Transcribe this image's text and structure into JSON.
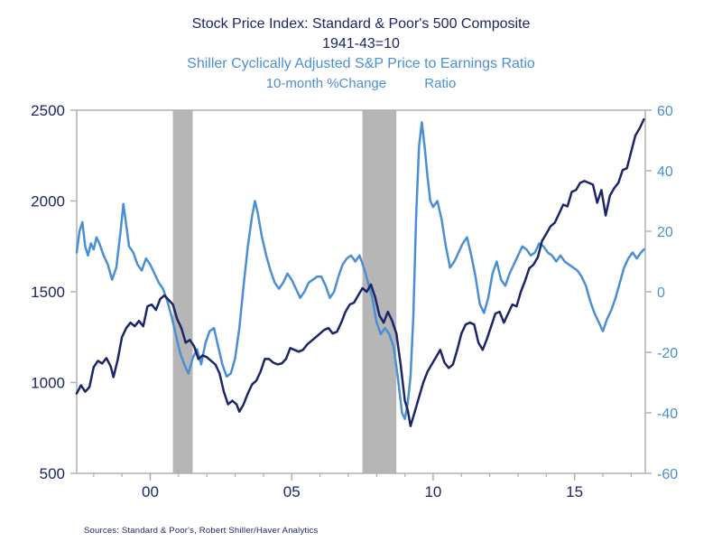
{
  "colors": {
    "navy": "#1b2568",
    "light_blue": "#4a8fd4",
    "recession": "#b6b6b6",
    "axis": "#b0b0b0"
  },
  "footer": {
    "source": "Sources:  Standard & Poor's, Robert Shiller/Haver Analytics"
  },
  "chart_data": {
    "type": "line",
    "title_line1": "Stock Price Index: Standard & Poor's 500 Composite",
    "title_line2": "1941-43=10",
    "subtitle_line1": "Shiller Cyclically Adjusted S&P Price to Earnings Ratio",
    "subtitle_line2_left": "10-month %Change",
    "subtitle_line2_right": "Ratio",
    "grid": false,
    "x_axis": {
      "range": [
        1997.4,
        2017.5
      ],
      "minor_tick_interval": 1,
      "major_tick_positions": [
        2000,
        2005,
        2010,
        2015
      ],
      "major_tick_labels": [
        "00",
        "05",
        "10",
        "15"
      ]
    },
    "left_axis": {
      "range": [
        500,
        2500
      ],
      "ticks": [
        500,
        1000,
        1500,
        2000,
        2500
      ]
    },
    "right_axis": {
      "range": [
        -60,
        60
      ],
      "ticks": [
        -60,
        -40,
        -20,
        0,
        20,
        40,
        60
      ]
    },
    "recession_bands": [
      [
        2000.8,
        2001.5
      ],
      [
        2007.5,
        2008.7
      ]
    ],
    "series": [
      {
        "id": "sp500-line",
        "name": "Stock Price Index: Standard & Poor's 500 Composite (1941-43=10)",
        "axis": "left",
        "color": "#1b2568",
        "points": [
          [
            1997.4,
            940
          ],
          [
            1997.55,
            985
          ],
          [
            1997.7,
            950
          ],
          [
            1997.85,
            975
          ],
          [
            1998.0,
            1085
          ],
          [
            1998.15,
            1120
          ],
          [
            1998.3,
            1105
          ],
          [
            1998.45,
            1135
          ],
          [
            1998.6,
            1090
          ],
          [
            1998.7,
            1030
          ],
          [
            1998.85,
            1125
          ],
          [
            1999.0,
            1250
          ],
          [
            1999.15,
            1300
          ],
          [
            1999.3,
            1330
          ],
          [
            1999.45,
            1310
          ],
          [
            1999.6,
            1340
          ],
          [
            1999.75,
            1310
          ],
          [
            1999.9,
            1420
          ],
          [
            2000.05,
            1430
          ],
          [
            2000.2,
            1400
          ],
          [
            2000.35,
            1460
          ],
          [
            2000.5,
            1480
          ],
          [
            2000.65,
            1455
          ],
          [
            2000.8,
            1430
          ],
          [
            2000.95,
            1350
          ],
          [
            2001.1,
            1300
          ],
          [
            2001.25,
            1220
          ],
          [
            2001.4,
            1235
          ],
          [
            2001.55,
            1200
          ],
          [
            2001.7,
            1130
          ],
          [
            2001.85,
            1150
          ],
          [
            2002.0,
            1140
          ],
          [
            2002.15,
            1120
          ],
          [
            2002.3,
            1100
          ],
          [
            2002.45,
            1050
          ],
          [
            2002.6,
            950
          ],
          [
            2002.75,
            880
          ],
          [
            2002.9,
            900
          ],
          [
            2003.05,
            880
          ],
          [
            2003.15,
            840
          ],
          [
            2003.3,
            880
          ],
          [
            2003.45,
            940
          ],
          [
            2003.6,
            990
          ],
          [
            2003.75,
            1010
          ],
          [
            2003.9,
            1060
          ],
          [
            2004.05,
            1130
          ],
          [
            2004.2,
            1130
          ],
          [
            2004.35,
            1110
          ],
          [
            2004.5,
            1100
          ],
          [
            2004.65,
            1105
          ],
          [
            2004.8,
            1130
          ],
          [
            2004.95,
            1190
          ],
          [
            2005.1,
            1180
          ],
          [
            2005.25,
            1170
          ],
          [
            2005.4,
            1180
          ],
          [
            2005.55,
            1210
          ],
          [
            2005.7,
            1230
          ],
          [
            2005.85,
            1250
          ],
          [
            2006.0,
            1270
          ],
          [
            2006.15,
            1290
          ],
          [
            2006.3,
            1300
          ],
          [
            2006.45,
            1270
          ],
          [
            2006.6,
            1280
          ],
          [
            2006.75,
            1330
          ],
          [
            2006.9,
            1390
          ],
          [
            2007.05,
            1430
          ],
          [
            2007.2,
            1440
          ],
          [
            2007.35,
            1480
          ],
          [
            2007.5,
            1520
          ],
          [
            2007.65,
            1500
          ],
          [
            2007.8,
            1540
          ],
          [
            2007.95,
            1470
          ],
          [
            2008.1,
            1370
          ],
          [
            2008.25,
            1330
          ],
          [
            2008.4,
            1390
          ],
          [
            2008.55,
            1340
          ],
          [
            2008.7,
            1270
          ],
          [
            2008.85,
            1100
          ],
          [
            2009.0,
            900
          ],
          [
            2009.1,
            850
          ],
          [
            2009.2,
            760
          ],
          [
            2009.35,
            840
          ],
          [
            2009.5,
            920
          ],
          [
            2009.65,
            1000
          ],
          [
            2009.8,
            1060
          ],
          [
            2009.95,
            1100
          ],
          [
            2010.1,
            1140
          ],
          [
            2010.25,
            1180
          ],
          [
            2010.4,
            1110
          ],
          [
            2010.55,
            1080
          ],
          [
            2010.7,
            1100
          ],
          [
            2010.85,
            1180
          ],
          [
            2011.0,
            1270
          ],
          [
            2011.15,
            1320
          ],
          [
            2011.3,
            1330
          ],
          [
            2011.45,
            1320
          ],
          [
            2011.6,
            1220
          ],
          [
            2011.75,
            1180
          ],
          [
            2011.9,
            1240
          ],
          [
            2012.05,
            1310
          ],
          [
            2012.2,
            1380
          ],
          [
            2012.35,
            1390
          ],
          [
            2012.5,
            1330
          ],
          [
            2012.65,
            1380
          ],
          [
            2012.8,
            1430
          ],
          [
            2012.95,
            1420
          ],
          [
            2013.1,
            1500
          ],
          [
            2013.25,
            1560
          ],
          [
            2013.4,
            1630
          ],
          [
            2013.55,
            1650
          ],
          [
            2013.7,
            1690
          ],
          [
            2013.85,
            1780
          ],
          [
            2014.0,
            1820
          ],
          [
            2014.15,
            1860
          ],
          [
            2014.3,
            1880
          ],
          [
            2014.45,
            1930
          ],
          [
            2014.6,
            1980
          ],
          [
            2014.75,
            1970
          ],
          [
            2014.9,
            2050
          ],
          [
            2015.05,
            2060
          ],
          [
            2015.2,
            2100
          ],
          [
            2015.35,
            2110
          ],
          [
            2015.5,
            2100
          ],
          [
            2015.65,
            2090
          ],
          [
            2015.8,
            1990
          ],
          [
            2015.95,
            2060
          ],
          [
            2016.1,
            1920
          ],
          [
            2016.25,
            2030
          ],
          [
            2016.4,
            2070
          ],
          [
            2016.55,
            2100
          ],
          [
            2016.7,
            2170
          ],
          [
            2016.85,
            2180
          ],
          [
            2017.0,
            2270
          ],
          [
            2017.15,
            2360
          ],
          [
            2017.3,
            2400
          ],
          [
            2017.45,
            2450
          ]
        ]
      },
      {
        "id": "cape-change-line",
        "name": "Shiller Cyclically Adjusted S&P Price to Earnings Ratio, 10-month %Change",
        "axis": "right",
        "color": "#4a8fd4",
        "points": [
          [
            1997.4,
            13
          ],
          [
            1997.5,
            20
          ],
          [
            1997.6,
            23
          ],
          [
            1997.7,
            15
          ],
          [
            1997.8,
            12
          ],
          [
            1997.9,
            16
          ],
          [
            1998.0,
            14
          ],
          [
            1998.1,
            18
          ],
          [
            1998.2,
            16
          ],
          [
            1998.35,
            12
          ],
          [
            1998.5,
            9
          ],
          [
            1998.65,
            4
          ],
          [
            1998.8,
            8
          ],
          [
            1998.95,
            20
          ],
          [
            1999.05,
            29
          ],
          [
            1999.15,
            22
          ],
          [
            1999.25,
            15
          ],
          [
            1999.4,
            13
          ],
          [
            1999.55,
            9
          ],
          [
            1999.7,
            7
          ],
          [
            1999.85,
            11
          ],
          [
            2000.0,
            9
          ],
          [
            2000.15,
            6
          ],
          [
            2000.3,
            3
          ],
          [
            2000.45,
            1
          ],
          [
            2000.6,
            -3
          ],
          [
            2000.75,
            -8
          ],
          [
            2000.9,
            -14
          ],
          [
            2001.05,
            -20
          ],
          [
            2001.2,
            -24
          ],
          [
            2001.35,
            -27
          ],
          [
            2001.5,
            -22
          ],
          [
            2001.65,
            -19
          ],
          [
            2001.8,
            -24
          ],
          [
            2001.95,
            -17
          ],
          [
            2002.1,
            -13
          ],
          [
            2002.25,
            -12
          ],
          [
            2002.4,
            -18
          ],
          [
            2002.55,
            -24
          ],
          [
            2002.7,
            -28
          ],
          [
            2002.85,
            -27
          ],
          [
            2003.0,
            -22
          ],
          [
            2003.15,
            -12
          ],
          [
            2003.3,
            2
          ],
          [
            2003.45,
            15
          ],
          [
            2003.6,
            25
          ],
          [
            2003.7,
            30
          ],
          [
            2003.8,
            26
          ],
          [
            2003.95,
            18
          ],
          [
            2004.1,
            12
          ],
          [
            2004.25,
            7
          ],
          [
            2004.4,
            3
          ],
          [
            2004.55,
            1
          ],
          [
            2004.7,
            3
          ],
          [
            2004.85,
            6
          ],
          [
            2005.0,
            4
          ],
          [
            2005.15,
            1
          ],
          [
            2005.3,
            -2
          ],
          [
            2005.45,
            0
          ],
          [
            2005.6,
            3
          ],
          [
            2005.75,
            4
          ],
          [
            2005.9,
            5
          ],
          [
            2006.05,
            5
          ],
          [
            2006.2,
            2
          ],
          [
            2006.35,
            -2
          ],
          [
            2006.5,
            0
          ],
          [
            2006.65,
            5
          ],
          [
            2006.8,
            9
          ],
          [
            2006.95,
            11
          ],
          [
            2007.1,
            12
          ],
          [
            2007.25,
            10
          ],
          [
            2007.4,
            12
          ],
          [
            2007.55,
            8
          ],
          [
            2007.7,
            3
          ],
          [
            2007.85,
            -2
          ],
          [
            2008.0,
            -10
          ],
          [
            2008.15,
            -14
          ],
          [
            2008.3,
            -12
          ],
          [
            2008.45,
            -14
          ],
          [
            2008.6,
            -18
          ],
          [
            2008.75,
            -28
          ],
          [
            2008.9,
            -40
          ],
          [
            2009.0,
            -42
          ],
          [
            2009.1,
            -37
          ],
          [
            2009.2,
            -28
          ],
          [
            2009.3,
            -8
          ],
          [
            2009.4,
            25
          ],
          [
            2009.5,
            48
          ],
          [
            2009.6,
            56
          ],
          [
            2009.7,
            48
          ],
          [
            2009.8,
            38
          ],
          [
            2009.9,
            30
          ],
          [
            2010.0,
            28
          ],
          [
            2010.15,
            30
          ],
          [
            2010.3,
            24
          ],
          [
            2010.45,
            15
          ],
          [
            2010.6,
            8
          ],
          [
            2010.75,
            10
          ],
          [
            2010.9,
            13
          ],
          [
            2011.05,
            16
          ],
          [
            2011.2,
            18
          ],
          [
            2011.35,
            12
          ],
          [
            2011.5,
            5
          ],
          [
            2011.65,
            -4
          ],
          [
            2011.8,
            -7
          ],
          [
            2011.95,
            -2
          ],
          [
            2012.1,
            6
          ],
          [
            2012.25,
            10
          ],
          [
            2012.4,
            4
          ],
          [
            2012.55,
            2
          ],
          [
            2012.7,
            6
          ],
          [
            2012.85,
            9
          ],
          [
            2013.0,
            12
          ],
          [
            2013.15,
            15
          ],
          [
            2013.3,
            14
          ],
          [
            2013.45,
            12
          ],
          [
            2013.6,
            13
          ],
          [
            2013.75,
            16
          ],
          [
            2013.9,
            15
          ],
          [
            2014.05,
            13
          ],
          [
            2014.2,
            12
          ],
          [
            2014.35,
            10
          ],
          [
            2014.5,
            12
          ],
          [
            2014.65,
            10
          ],
          [
            2014.8,
            9
          ],
          [
            2014.95,
            8
          ],
          [
            2015.1,
            7
          ],
          [
            2015.25,
            5
          ],
          [
            2015.4,
            2
          ],
          [
            2015.55,
            -3
          ],
          [
            2015.7,
            -7
          ],
          [
            2015.85,
            -10
          ],
          [
            2016.0,
            -13
          ],
          [
            2016.15,
            -9
          ],
          [
            2016.3,
            -6
          ],
          [
            2016.45,
            -2
          ],
          [
            2016.6,
            3
          ],
          [
            2016.75,
            8
          ],
          [
            2016.9,
            11
          ],
          [
            2017.05,
            13
          ],
          [
            2017.2,
            11
          ],
          [
            2017.35,
            13
          ],
          [
            2017.45,
            14
          ]
        ]
      }
    ]
  }
}
